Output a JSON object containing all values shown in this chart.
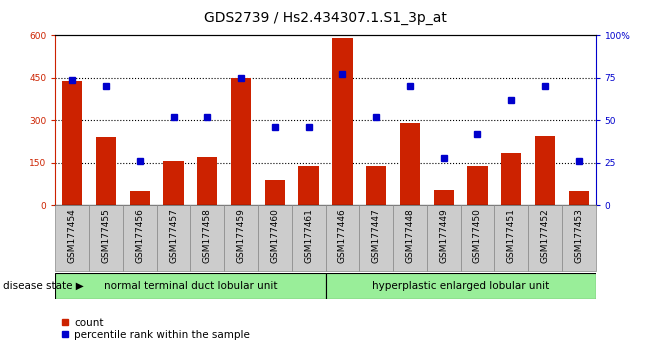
{
  "title": "GDS2739 / Hs2.434307.1.S1_3p_at",
  "samples": [
    "GSM177454",
    "GSM177455",
    "GSM177456",
    "GSM177457",
    "GSM177458",
    "GSM177459",
    "GSM177460",
    "GSM177461",
    "GSM177446",
    "GSM177447",
    "GSM177448",
    "GSM177449",
    "GSM177450",
    "GSM177451",
    "GSM177452",
    "GSM177453"
  ],
  "counts": [
    440,
    240,
    50,
    155,
    170,
    450,
    90,
    140,
    590,
    140,
    290,
    55,
    140,
    185,
    245,
    50
  ],
  "percentiles": [
    74,
    70,
    26,
    52,
    52,
    75,
    46,
    46,
    77,
    52,
    70,
    28,
    42,
    62,
    70,
    26
  ],
  "group1_label": "normal terminal duct lobular unit",
  "group2_label": "hyperplastic enlarged lobular unit",
  "group1_count": 8,
  "group2_count": 8,
  "bar_color": "#CC2200",
  "dot_color": "#0000CC",
  "left_axis_color": "#CC2200",
  "right_axis_color": "#0000CC",
  "ylim_left": [
    0,
    600
  ],
  "ylim_right": [
    0,
    100
  ],
  "yticks_left": [
    0,
    150,
    300,
    450,
    600
  ],
  "yticks_right": [
    0,
    25,
    50,
    75,
    100
  ],
  "grid_dotted_values": [
    150,
    300,
    450
  ],
  "group_color": "#99EE99",
  "disease_state_label": "disease state",
  "legend_count_label": "count",
  "legend_percentile_label": "percentile rank within the sample",
  "title_fontsize": 10,
  "tick_fontsize": 6.5,
  "group_fontsize": 7.5,
  "legend_fontsize": 7.5
}
